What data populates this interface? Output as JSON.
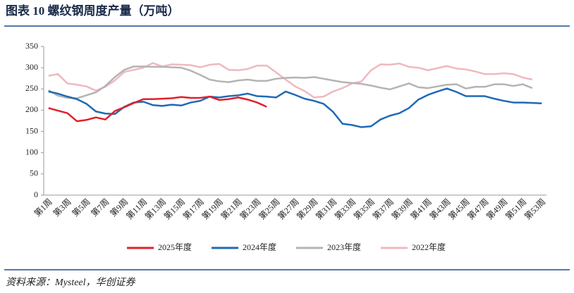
{
  "chart_data": {
    "type": "line",
    "title": "图表 10    螺纹钢周度产量（万吨）",
    "source": "资料来源：Mysteel，华创证券",
    "categories": [
      "第1周",
      null,
      "第3周",
      null,
      "第5周",
      null,
      "第7周",
      null,
      "第9周",
      null,
      "第11周",
      null,
      "第13周",
      null,
      "第15周",
      null,
      "第17周",
      null,
      "第19周",
      null,
      "第21周",
      null,
      "第23周",
      null,
      "第25周",
      null,
      "第27周",
      null,
      "第29周",
      null,
      "第31周",
      null,
      "第33周",
      null,
      "第35周",
      null,
      "第37周",
      null,
      "第39周",
      null,
      "第41周",
      null,
      "第43周",
      null,
      "第45周",
      null,
      "第47周",
      null,
      "第49周",
      null,
      "第51周",
      null,
      "第53周"
    ],
    "ylim": [
      0,
      350
    ],
    "yticks": [
      0,
      50,
      100,
      150,
      200,
      250,
      300,
      350
    ],
    "legend": "bottom",
    "series": [
      {
        "name": "2025年度",
        "color": "#e0202a",
        "values": [
          205,
          199,
          193,
          174,
          177,
          183,
          178,
          198,
          207,
          217,
          226,
          226,
          227,
          228,
          231,
          229,
          229,
          232,
          224,
          226,
          230,
          225,
          218,
          208,
          null,
          null,
          null,
          null,
          null,
          null,
          null,
          null,
          null,
          null,
          null,
          null,
          null,
          null,
          null,
          null,
          null,
          null,
          null,
          null,
          null,
          null,
          null,
          null,
          null,
          null,
          null,
          null,
          null
        ]
      },
      {
        "name": "2024年度",
        "color": "#1f6ab5",
        "values": [
          244,
          239,
          232,
          226,
          215,
          197,
          192,
          191,
          208,
          218,
          220,
          212,
          210,
          213,
          211,
          218,
          222,
          232,
          230,
          233,
          235,
          239,
          233,
          232,
          230,
          244,
          236,
          227,
          222,
          215,
          196,
          168,
          165,
          160,
          162,
          178,
          187,
          193,
          205,
          225,
          236,
          244,
          251,
          243,
          233,
          233,
          233,
          227,
          222,
          218,
          218,
          217,
          216
        ]
      },
      {
        "name": "2023年度",
        "color": "#b4b4b4",
        "values": [
          247,
          234,
          229,
          228,
          235,
          242,
          257,
          278,
          295,
          303,
          303,
          302,
          302,
          301,
          300,
          293,
          283,
          272,
          268,
          266,
          270,
          272,
          269,
          269,
          274,
          276,
          277,
          276,
          278,
          274,
          270,
          266,
          264,
          262,
          258,
          253,
          249,
          256,
          263,
          254,
          252,
          256,
          260,
          261,
          251,
          255,
          255,
          261,
          261,
          257,
          261,
          252,
          null
        ]
      },
      {
        "name": "2022年度",
        "color": "#f0b8c0",
        "values": [
          281,
          285,
          263,
          260,
          256,
          246,
          255,
          270,
          290,
          295,
          300,
          311,
          303,
          308,
          307,
          306,
          301,
          307,
          309,
          295,
          294,
          297,
          305,
          305,
          289,
          272,
          256,
          245,
          230,
          232,
          244,
          252,
          263,
          268,
          294,
          308,
          307,
          310,
          302,
          300,
          294,
          299,
          304,
          298,
          296,
          291,
          285,
          285,
          287,
          285,
          277,
          272,
          null
        ]
      }
    ]
  }
}
